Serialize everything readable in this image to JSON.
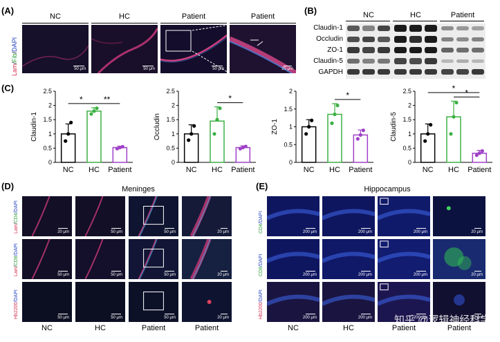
{
  "panelA": {
    "letter": "(A)",
    "ylabel": {
      "lam": "Lam",
      "sep1": "/",
      "fib": "Fib",
      "sep2": "/",
      "dapi": "DAPI"
    },
    "headers": [
      "NC",
      "HC",
      "Patient",
      "Patient"
    ],
    "scalebars": [
      "50 μm",
      "50 μm",
      "50 μm",
      "20 μm"
    ]
  },
  "panelB": {
    "letter": "(B)",
    "groups": [
      "NC",
      "HC",
      "Patient"
    ],
    "rows": [
      "Claudin-1",
      "Occludin",
      "ZO-1",
      "Claudin-5",
      "GAPDH"
    ]
  },
  "panelC": {
    "letter": "(C)",
    "colors": {
      "NC": "#000000",
      "HC": "#3cb043",
      "Patient": "#a040c8"
    },
    "categories": [
      "NC",
      "HC",
      "Patient"
    ]
  },
  "chart_data": [
    {
      "type": "bar",
      "ylabel": "Claudin-1",
      "categories": [
        "NC",
        "HC",
        "Patient"
      ],
      "values": [
        1.0,
        1.8,
        0.52
      ],
      "errors": [
        0.35,
        0.12,
        0.05
      ],
      "ylim": [
        0,
        2.5
      ],
      "yticks": [
        "0",
        "0.5",
        "1",
        "1.5",
        "2",
        "2.5"
      ],
      "points": [
        [
          0.75,
          1.0,
          1.4
        ],
        [
          1.7,
          1.8,
          1.9
        ],
        [
          0.48,
          0.52,
          0.55
        ]
      ],
      "significance": [
        {
          "pair": [
            0,
            1
          ],
          "label": "*"
        },
        {
          "pair": [
            1,
            2
          ],
          "label": "**"
        }
      ]
    },
    {
      "type": "bar",
      "ylabel": "Occludin",
      "categories": [
        "NC",
        "HC",
        "Patient"
      ],
      "values": [
        1.0,
        1.45,
        0.52
      ],
      "errors": [
        0.32,
        0.5,
        0.06
      ],
      "ylim": [
        0,
        2.5
      ],
      "yticks": [
        "0",
        "0.5",
        "1",
        "1.5",
        "2",
        "2.5"
      ],
      "points": [
        [
          0.78,
          1.0,
          1.28
        ],
        [
          1.0,
          1.5,
          1.9
        ],
        [
          0.48,
          0.52,
          0.56
        ]
      ],
      "significance": [
        {
          "pair": [
            1,
            2
          ],
          "label": "*"
        }
      ]
    },
    {
      "type": "bar",
      "ylabel": "ZO-1",
      "categories": [
        "NC",
        "HC",
        "Patient"
      ],
      "values": [
        1.0,
        1.35,
        0.77
      ],
      "errors": [
        0.2,
        0.3,
        0.14
      ],
      "ylim": [
        0,
        2.0
      ],
      "yticks": [
        "0",
        "0.5",
        "1",
        "1.5",
        "2"
      ],
      "points": [
        [
          0.8,
          1.0,
          1.18
        ],
        [
          1.1,
          1.35,
          1.6
        ],
        [
          0.66,
          0.77,
          0.9
        ]
      ],
      "significance": [
        {
          "pair": [
            1,
            2
          ],
          "label": "*"
        }
      ]
    },
    {
      "type": "bar",
      "ylabel": "Claudin-5",
      "categories": [
        "NC",
        "HC",
        "Patient"
      ],
      "values": [
        1.0,
        1.6,
        0.32
      ],
      "errors": [
        0.35,
        0.55,
        0.1
      ],
      "ylim": [
        0,
        2.5
      ],
      "yticks": [
        "0",
        "0.5",
        "1",
        "1.5",
        "2",
        "2.5"
      ],
      "points": [
        [
          0.75,
          1.0,
          1.32
        ],
        [
          1.0,
          1.6,
          2.1
        ],
        [
          0.25,
          0.32,
          0.4
        ]
      ],
      "significance": [
        {
          "pair": [
            0,
            2
          ],
          "label": "*"
        },
        {
          "pair": [
            1,
            2
          ],
          "label": "*"
        }
      ]
    }
  ],
  "panelD": {
    "letter": "(D)",
    "title": "Meninges",
    "rowlabels": [
      {
        "a": "Lam",
        "b": "/",
        "c": "CD4",
        "d": "/DAPI"
      },
      {
        "a": "Lam",
        "b": "/",
        "c": "CD8",
        "d": "/DAPI"
      },
      {
        "a": "Hb2200",
        "b": "",
        "c": "",
        "d": "/DAPI"
      }
    ],
    "scalebars": [
      [
        "20 μm",
        "50 μm",
        "50 μm",
        "20 μm"
      ],
      [
        "50 μm",
        "50 μm",
        "50 μm",
        "20 μm"
      ],
      [
        "50 μm",
        "50 μm",
        "50 μm",
        "20 μm"
      ]
    ],
    "footer": [
      "NC",
      "HC",
      "Patient",
      "Patient"
    ]
  },
  "panelE": {
    "letter": "(E)",
    "title": "Hippocampus",
    "rowlabels": [
      {
        "a": "CD4",
        "d": "/DAPI"
      },
      {
        "a": "CD8",
        "d": "/DAPI"
      },
      {
        "a": "Hb2200",
        "d": "/DAPI"
      }
    ],
    "scalebars": [
      [
        "200 μm",
        "200 μm",
        "200 μm",
        "20 μm"
      ],
      [
        "200 μm",
        "200 μm",
        "200 μm",
        "20 μm"
      ],
      [
        "200 μm",
        "200 μm",
        "200 μm",
        "20 μm"
      ]
    ],
    "footer": [
      "NC",
      "HC",
      "Patient",
      "Patient"
    ]
  },
  "watermark": "知乎 @逻辑神经科学"
}
